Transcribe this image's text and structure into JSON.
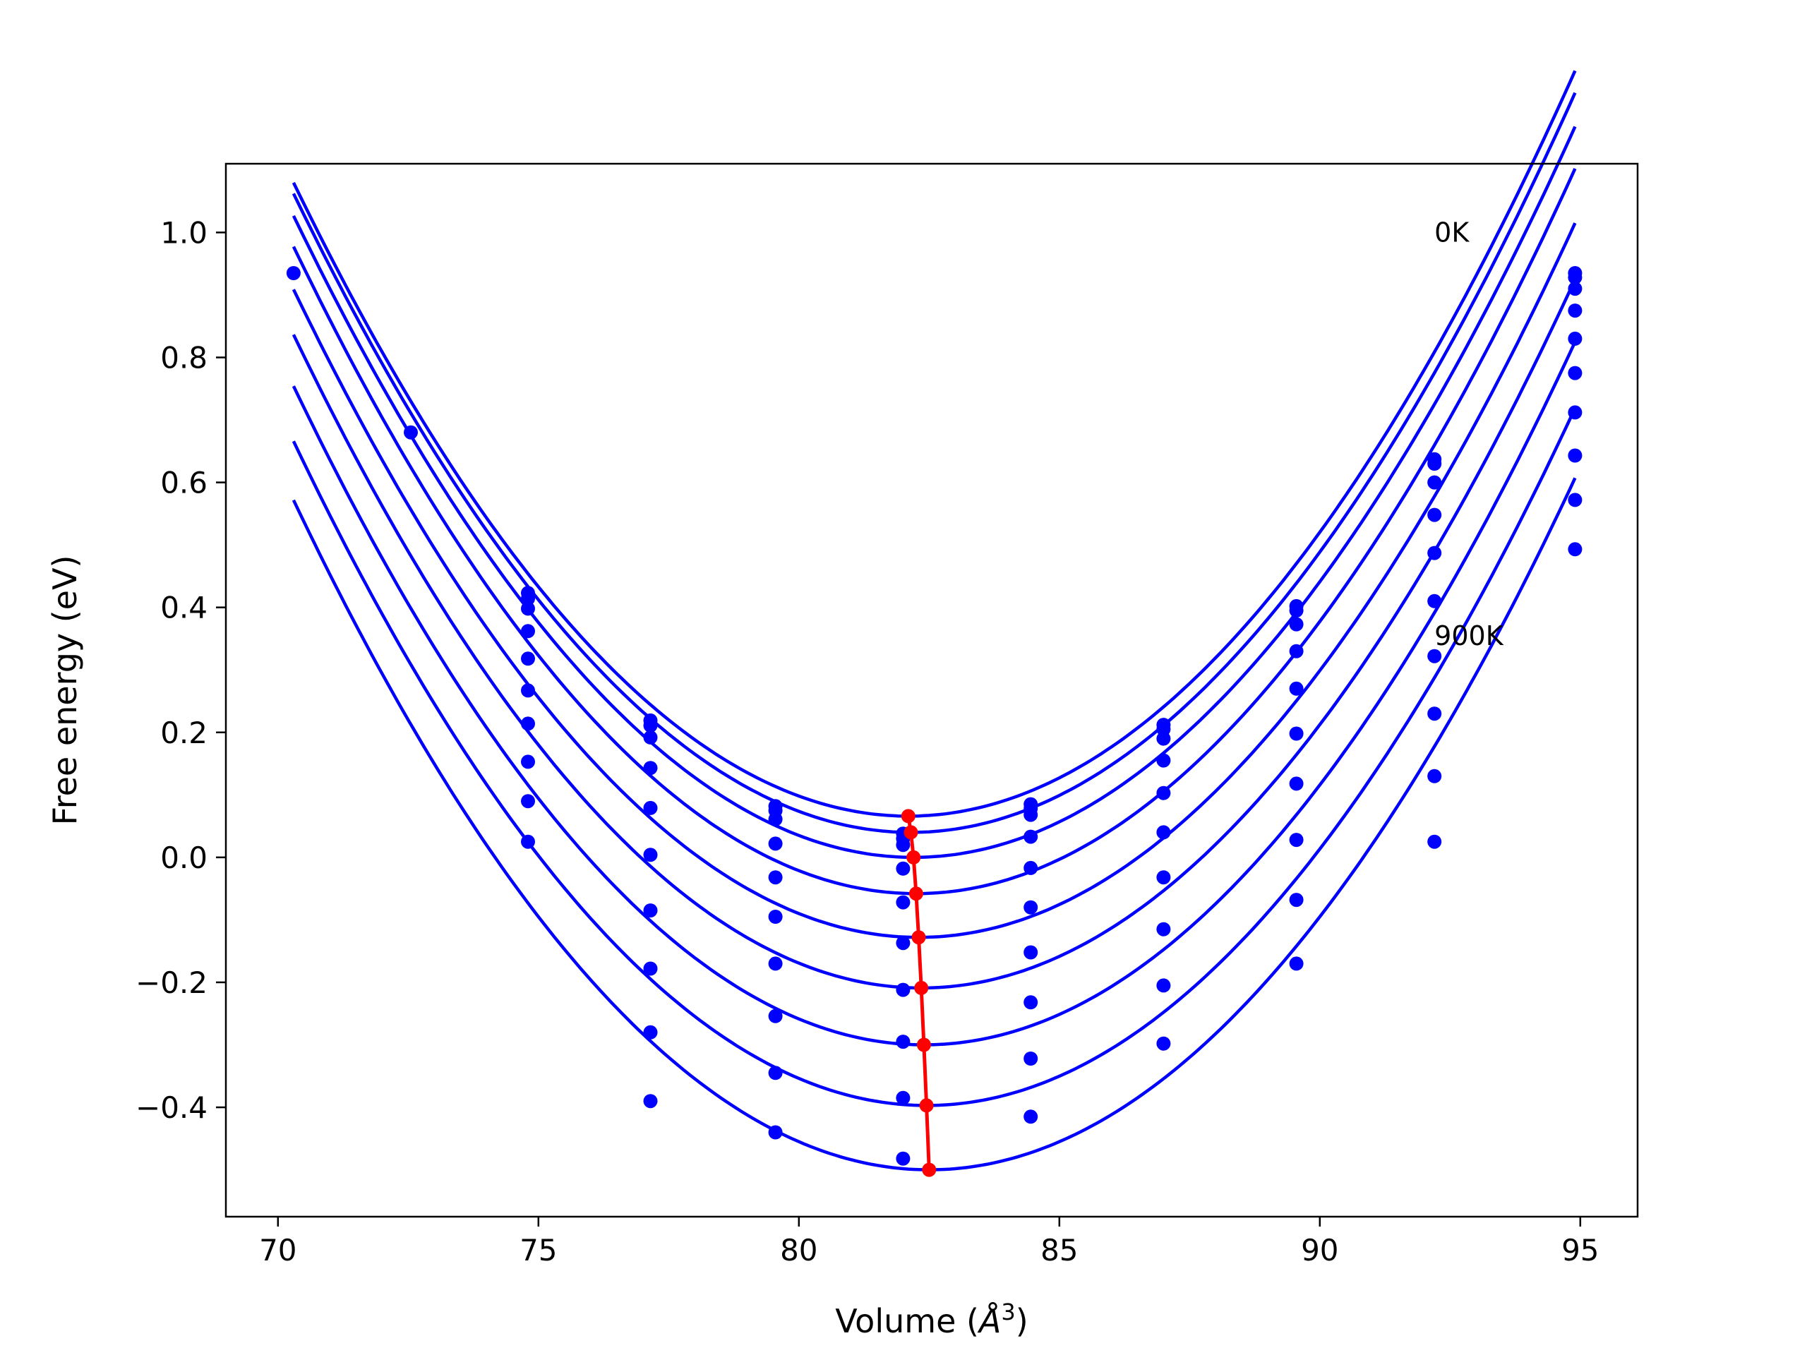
{
  "chart_data": {
    "type": "scatter",
    "title": "",
    "xlabel": "Volume (Å³)",
    "xlabel_parts": {
      "prefix": "Volume (",
      "unit": "Å",
      "exp": "3",
      "suffix": ")"
    },
    "ylabel": "Free energy (eV)",
    "xlim": [
      69.0,
      96.1
    ],
    "ylim": [
      -0.575,
      1.11
    ],
    "xticks": [
      70,
      75,
      80,
      85,
      90,
      95
    ],
    "xtick_labels": [
      "70",
      "75",
      "80",
      "85",
      "90",
      "95"
    ],
    "yticks": [
      -0.4,
      -0.2,
      0.0,
      0.2,
      0.4,
      0.6,
      0.8,
      1.0
    ],
    "ytick_labels": [
      "−0.4",
      "−0.2",
      "0.0",
      "0.2",
      "0.4",
      "0.6",
      "0.8",
      "1.0"
    ],
    "grid": false,
    "colors": {
      "curves": "#0000ff",
      "minimum_line": "#ff0000",
      "axes": "#000000"
    },
    "annotations": [
      {
        "text": "0K",
        "x": 92.2,
        "y": 0.985
      },
      {
        "text": "900K",
        "x": 92.2,
        "y": 0.34
      }
    ],
    "volumes": [
      70.3,
      72.55,
      74.8,
      77.15,
      79.55,
      82.0,
      84.45,
      87.0,
      89.55,
      92.2,
      94.9
    ],
    "series": [
      {
        "fit": {
          "a": 0.00728,
          "v0": 82.1,
          "fmin": 0.066
        },
        "points": [
          [
            70.3,
            0.935
          ],
          [
            72.55,
            0.68
          ],
          [
            74.8,
            0.423
          ],
          [
            77.15,
            0.219
          ],
          [
            79.55,
            0.082
          ],
          [
            82.0,
            0.038
          ],
          [
            84.45,
            0.085
          ],
          [
            87.0,
            0.212
          ],
          [
            89.55,
            0.402
          ],
          [
            92.2,
            0.637
          ],
          [
            94.9,
            0.935
          ]
        ]
      },
      {
        "fit": {
          "a": 0.00728,
          "v0": 82.15,
          "fmin": 0.04
        },
        "points": [
          [
            74.8,
            0.414
          ],
          [
            77.15,
            0.211
          ],
          [
            79.55,
            0.075
          ],
          [
            82.0,
            0.03
          ],
          [
            84.45,
            0.078
          ],
          [
            87.0,
            0.205
          ],
          [
            89.55,
            0.395
          ],
          [
            92.2,
            0.63
          ],
          [
            94.9,
            0.928
          ]
        ]
      },
      {
        "fit": {
          "a": 0.00725,
          "v0": 82.2,
          "fmin": 0.0
        },
        "points": [
          [
            74.8,
            0.398
          ],
          [
            77.15,
            0.192
          ],
          [
            79.55,
            0.061
          ],
          [
            82.0,
            0.02
          ],
          [
            84.45,
            0.068
          ],
          [
            87.0,
            0.19
          ],
          [
            89.55,
            0.373
          ],
          [
            92.2,
            0.6
          ],
          [
            94.9,
            0.91
          ]
        ]
      },
      {
        "fit": {
          "a": 0.00725,
          "v0": 82.25,
          "fmin": -0.058
        },
        "points": [
          [
            74.8,
            0.362
          ],
          [
            77.15,
            0.143
          ],
          [
            79.55,
            0.022
          ],
          [
            82.0,
            -0.018
          ],
          [
            84.45,
            0.033
          ],
          [
            87.0,
            0.155
          ],
          [
            89.55,
            0.33
          ],
          [
            92.2,
            0.548
          ],
          [
            94.9,
            0.875
          ]
        ]
      },
      {
        "fit": {
          "a": 0.0072,
          "v0": 82.3,
          "fmin": -0.128
        },
        "points": [
          [
            74.8,
            0.318
          ],
          [
            77.15,
            0.079
          ],
          [
            79.55,
            -0.032
          ],
          [
            82.0,
            -0.072
          ],
          [
            84.45,
            -0.017
          ],
          [
            87.0,
            0.103
          ],
          [
            89.55,
            0.27
          ],
          [
            92.2,
            0.487
          ],
          [
            94.9,
            0.83
          ]
        ]
      },
      {
        "fit": {
          "a": 0.0072,
          "v0": 82.35,
          "fmin": -0.209
        },
        "points": [
          [
            74.8,
            0.267
          ],
          [
            77.15,
            0.004
          ],
          [
            79.55,
            -0.095
          ],
          [
            82.0,
            -0.137
          ],
          [
            84.45,
            -0.08
          ],
          [
            87.0,
            0.04
          ],
          [
            89.55,
            0.198
          ],
          [
            92.2,
            0.41
          ],
          [
            94.9,
            0.775
          ]
        ]
      },
      {
        "fit": {
          "a": 0.0072,
          "v0": 82.4,
          "fmin": -0.3
        },
        "points": [
          [
            74.8,
            0.214
          ],
          [
            77.15,
            -0.085
          ],
          [
            79.55,
            -0.17
          ],
          [
            82.0,
            -0.212
          ],
          [
            84.45,
            -0.152
          ],
          [
            87.0,
            -0.032
          ],
          [
            89.55,
            0.118
          ],
          [
            92.2,
            0.322
          ],
          [
            94.9,
            0.712
          ]
        ]
      },
      {
        "fit": {
          "a": 0.0072,
          "v0": 82.45,
          "fmin": -0.397
        },
        "points": [
          [
            74.8,
            0.153
          ],
          [
            77.15,
            -0.178
          ],
          [
            79.55,
            -0.254
          ],
          [
            82.0,
            -0.295
          ],
          [
            84.45,
            -0.232
          ],
          [
            87.0,
            -0.115
          ],
          [
            89.55,
            0.028
          ],
          [
            92.2,
            0.23
          ],
          [
            94.9,
            0.643
          ]
        ]
      },
      {
        "fit": {
          "a": 0.0072,
          "v0": 82.5,
          "fmin": -0.5
        },
        "points": [
          [
            74.8,
            0.09
          ],
          [
            77.15,
            -0.28
          ],
          [
            79.55,
            -0.345
          ],
          [
            82.0,
            -0.385
          ],
          [
            84.45,
            -0.322
          ],
          [
            87.0,
            -0.205
          ],
          [
            89.55,
            -0.068
          ],
          [
            92.2,
            0.13
          ],
          [
            94.9,
            0.572
          ]
        ]
      },
      {
        "fit": null,
        "points": [
          [
            74.8,
            0.025
          ],
          [
            77.15,
            -0.39
          ],
          [
            79.55,
            -0.44
          ],
          [
            82.0,
            -0.482
          ],
          [
            84.45,
            -0.415
          ],
          [
            87.0,
            -0.298
          ],
          [
            89.55,
            -0.17
          ],
          [
            92.2,
            0.025
          ],
          [
            94.9,
            0.493
          ]
        ]
      }
    ],
    "minimum_line": {
      "x": [
        82.1,
        82.15,
        82.2,
        82.25,
        82.3,
        82.35,
        82.4,
        82.45,
        82.5
      ],
      "y": [
        0.066,
        0.04,
        0.0,
        -0.058,
        -0.128,
        -0.209,
        -0.3,
        -0.397,
        -0.5
      ]
    }
  }
}
